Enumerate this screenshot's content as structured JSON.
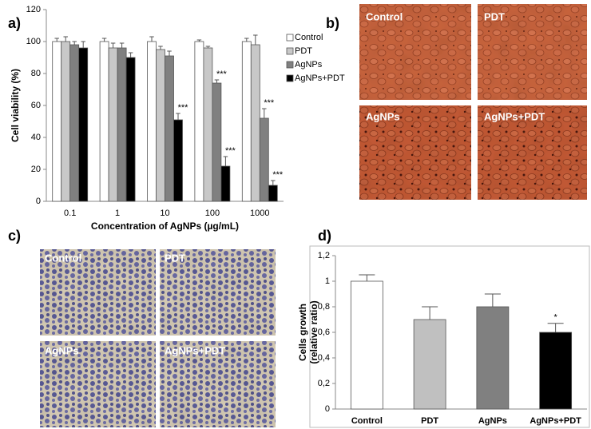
{
  "panel_labels": [
    "a)",
    "b)",
    "c)",
    "d)"
  ],
  "chart_data": [
    {
      "type": "bar",
      "ylabel": "Cell viability (%)",
      "xlabel": "Concentration of AgNPs (µg/mL)",
      "categories": [
        "0.1",
        "1",
        "10",
        "100",
        "1000"
      ],
      "series": [
        {
          "name": "Control",
          "color": "#ffffff",
          "values": [
            100,
            100,
            100,
            100,
            100
          ],
          "errors": [
            2,
            2,
            3,
            1,
            2
          ],
          "markers": [
            null,
            null,
            null,
            null,
            null
          ]
        },
        {
          "name": "PDT",
          "color": "#c8c8c8",
          "values": [
            100,
            96,
            95,
            96,
            98
          ],
          "errors": [
            3,
            3,
            2,
            1,
            6
          ],
          "markers": [
            null,
            null,
            null,
            null,
            null
          ]
        },
        {
          "name": "AgNPs",
          "color": "#808080",
          "values": [
            98,
            96,
            91,
            74,
            52
          ],
          "errors": [
            2,
            3,
            3,
            2,
            6
          ],
          "markers": [
            null,
            null,
            null,
            "***",
            "***"
          ]
        },
        {
          "name": "AgNPs+PDT",
          "color": "#000000",
          "values": [
            96,
            90,
            51,
            22,
            10
          ],
          "errors": [
            4,
            3,
            4,
            6,
            3
          ],
          "markers": [
            null,
            null,
            "***",
            "***",
            "***"
          ]
        }
      ],
      "ylim": [
        0,
        120
      ],
      "yticks": [
        0,
        20,
        40,
        60,
        80,
        100,
        120
      ],
      "legend": "right",
      "grid": false
    },
    {
      "type": "bar",
      "ylabel": [
        "Cells growth",
        "(relative ratio)"
      ],
      "categories": [
        "Control",
        "PDT",
        "AgNPs",
        "AgNPs+PDT"
      ],
      "values": [
        1,
        0.7,
        0.8,
        0.6
      ],
      "errors": [
        0.05,
        0.1,
        0.1,
        0.07
      ],
      "markers": [
        null,
        null,
        null,
        "*"
      ],
      "colors": [
        "#ffffff",
        "#c0c0c0",
        "#808080",
        "#000000"
      ],
      "ylim": [
        0,
        1.2
      ],
      "yticks": [
        0,
        {
          "value": 0.2,
          "label": "0,2"
        },
        {
          "value": 0.4,
          "label": "0,4"
        },
        {
          "value": 0.6,
          "label": "0,6"
        },
        {
          "value": 0.8,
          "label": "0,8"
        },
        1,
        {
          "value": 1.2,
          "label": "1,2"
        }
      ],
      "grid": false
    }
  ],
  "micrographs_b": {
    "labels": [
      "Control",
      "PDT",
      "AgNPs",
      "AgNPs+PDT"
    ]
  },
  "micrographs_c": {
    "labels": [
      "Control",
      "PDT",
      "AgNPs",
      "AgNPs+PDT"
    ]
  }
}
